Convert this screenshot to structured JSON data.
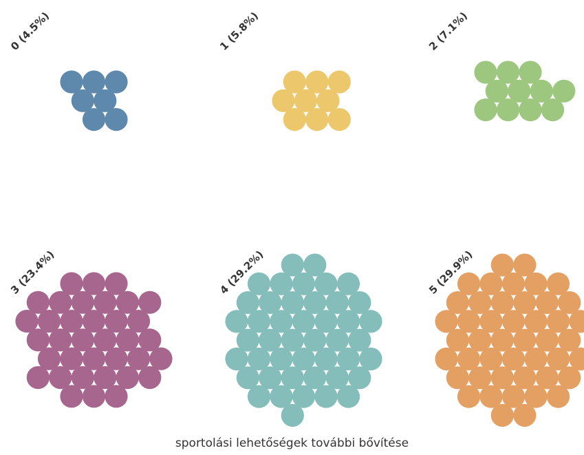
{
  "chart_data": {
    "type": "beeswarm",
    "xlabel": "sportolási lehetőségek további bővítése",
    "groups": [
      {
        "category": "0",
        "label": "0 (4.5%)",
        "percent": 4.5,
        "dots": 7,
        "color": "#5f88ad"
      },
      {
        "category": "1",
        "label": "1 (5.8%)",
        "percent": 5.8,
        "dots": 9,
        "color": "#ecc76b"
      },
      {
        "category": "2",
        "label": "2 (7.1%)",
        "percent": 7.1,
        "dots": 11,
        "color": "#9dc67e"
      },
      {
        "category": "3",
        "label": "3 (23.4%)",
        "percent": 23.4,
        "dots": 36,
        "color": "#a6668d"
      },
      {
        "category": "4",
        "label": "4 (29.2%)",
        "percent": 29.2,
        "dots": 45,
        "color": "#84bdba"
      },
      {
        "category": "5",
        "label": "5 (29.9%)",
        "percent": 29.9,
        "dots": 46,
        "color": "#e3a062"
      }
    ]
  }
}
